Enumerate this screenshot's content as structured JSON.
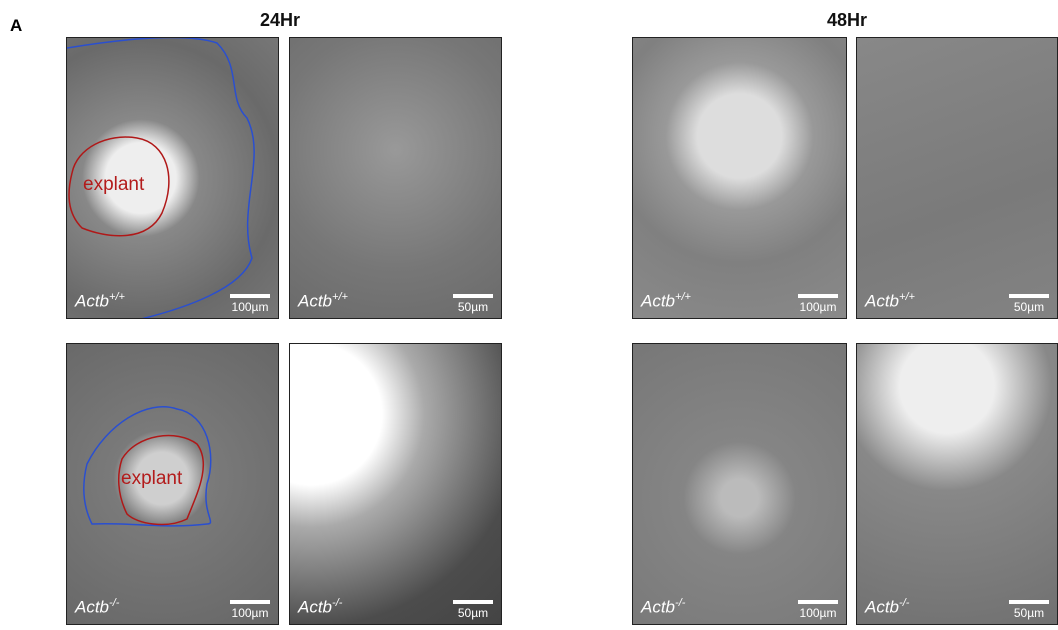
{
  "panel_letter": "A",
  "columns": [
    {
      "title": "24Hr"
    },
    {
      "title": "48Hr"
    }
  ],
  "panels": [
    {
      "genotype": "Actb",
      "superscript": "+/+",
      "scale_bar": "100µm",
      "annotation": "explant"
    },
    {
      "genotype": "Actb",
      "superscript": "+/+",
      "scale_bar": "50µm"
    },
    {
      "genotype": "Actb",
      "superscript": "+/+",
      "scale_bar": "100µm"
    },
    {
      "genotype": "Actb",
      "superscript": "+/+",
      "scale_bar": "50µm"
    },
    {
      "genotype": "Actb",
      "superscript": "-/-",
      "scale_bar": "100µm",
      "annotation": "explant"
    },
    {
      "genotype": "Actb",
      "superscript": "-/-",
      "scale_bar": "50µm"
    },
    {
      "genotype": "Actb",
      "superscript": "-/-",
      "scale_bar": "100µm"
    },
    {
      "genotype": "Actb",
      "superscript": "-/-",
      "scale_bar": "50µm"
    }
  ]
}
